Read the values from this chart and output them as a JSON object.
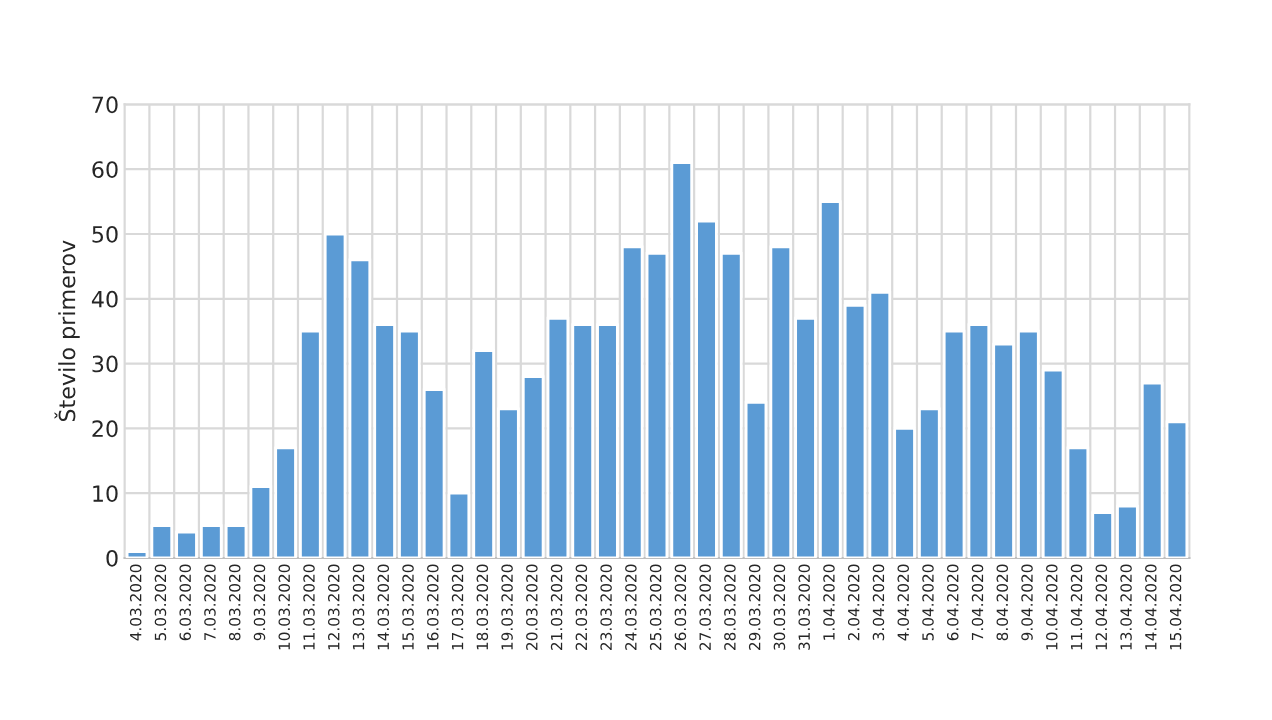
{
  "chart_data": {
    "type": "bar",
    "ylabel": "Število primerov",
    "categories": [
      "4.03.2020",
      "5.03.2020",
      "6.03.2020",
      "7.03.2020",
      "8.03.2020",
      "9.03.2020",
      "10.03.2020",
      "11.03.2020",
      "12.03.2020",
      "13.03.2020",
      "14.03.2020",
      "15.03.2020",
      "16.03.2020",
      "17.03.2020",
      "18.03.2020",
      "19.03.2020",
      "20.03.2020",
      "21.03.2020",
      "22.03.2020",
      "23.03.2020",
      "24.03.2020",
      "25.03.2020",
      "26.03.2020",
      "27.03.2020",
      "28.03.2020",
      "29.03.2020",
      "30.03.2020",
      "31.03.2020",
      "1.04.2020",
      "2.04.2020",
      "3.04.2020",
      "4.04.2020",
      "5.04.2020",
      "6.04.2020",
      "7.04.2020",
      "8.04.2020",
      "9.04.2020",
      "10.04.2020",
      "11.04.2020",
      "12.04.2020",
      "13.04.2020",
      "14.04.2020",
      "15.04.2020"
    ],
    "values": [
      1,
      5,
      4,
      5,
      5,
      11,
      17,
      35,
      50,
      46,
      36,
      35,
      26,
      10,
      32,
      23,
      28,
      37,
      36,
      36,
      48,
      47,
      61,
      52,
      47,
      24,
      48,
      37,
      55,
      39,
      41,
      20,
      23,
      35,
      36,
      33,
      35,
      29,
      17,
      7,
      8,
      27,
      21
    ],
    "color": "#5b9bd5",
    "ylim": [
      0,
      70
    ],
    "yticks": [
      0,
      10,
      20,
      30,
      40,
      50,
      60,
      70
    ],
    "grid": true
  }
}
